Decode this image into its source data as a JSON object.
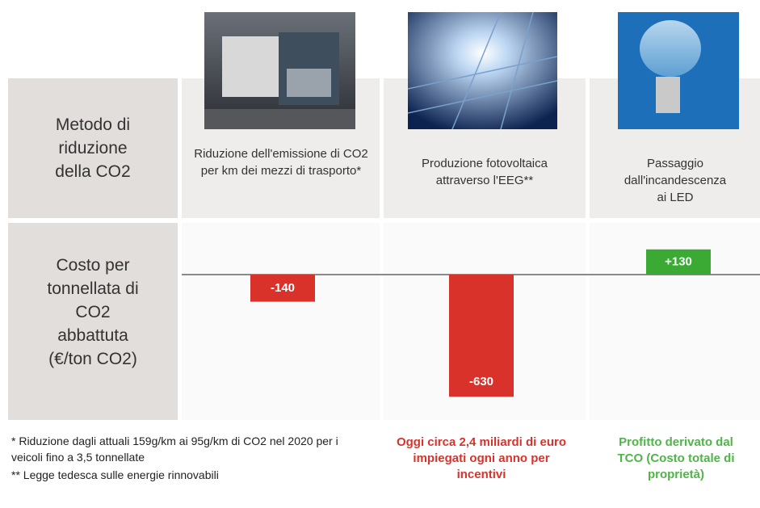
{
  "chart_data": {
    "type": "bar",
    "row_headers": [
      [
        "Metodo di",
        "riduzione",
        "della CO2"
      ],
      [
        "Costo per",
        "tonnellata di",
        "CO2",
        "abbattuta",
        "(€/ton CO2)"
      ]
    ],
    "categories": [
      "Riduzione dell'emissione di CO2 per km dei mezzi di trasporto*",
      "Produzione fotovoltaica attraverso l'EEG**",
      "Passaggio dall'incandescenza ai LED"
    ],
    "values": [
      -140,
      -630,
      130
    ],
    "value_labels": [
      "-140",
      "-630",
      "+130"
    ],
    "colors": [
      "#d9322b",
      "#d9322b",
      "#3aaa35"
    ],
    "ylim": [
      -750,
      250
    ],
    "footnotes": [
      "* Riduzione dagli attuali 159g/km  ai 95g/km di CO2 nel 2020 per i veicoli fino a 3,5 tonnellate",
      "** Legge tedesca sulle energie rinnovabili"
    ],
    "notes": [
      {
        "text": "Oggi circa 2,4 miliardi di euro impiegati ogni anno per incentivi",
        "color": "#d9322b"
      },
      {
        "text": "Profitto derivato dal TCO (Costo totale di proprietà)",
        "color": "#4fb548"
      }
    ]
  }
}
